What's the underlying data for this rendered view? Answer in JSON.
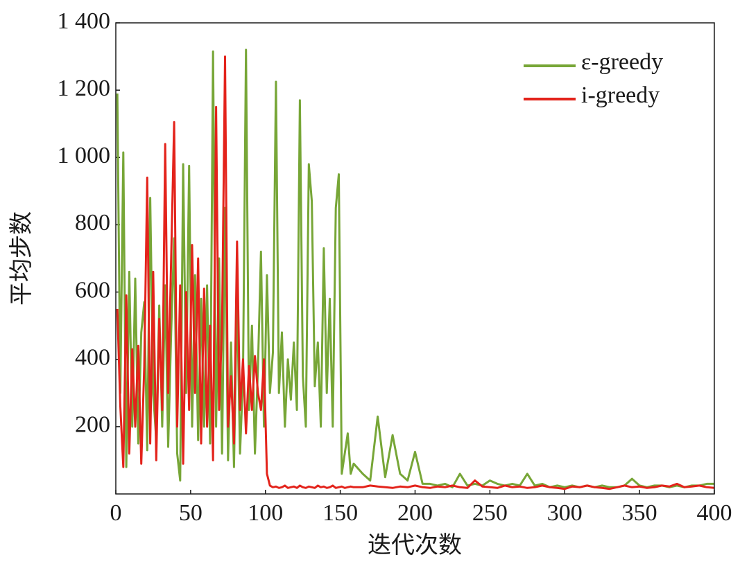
{
  "chart_data": {
    "type": "line",
    "x_label": "迭代次数",
    "y_label": "平均步数",
    "x": [
      1,
      3,
      5,
      7,
      9,
      11,
      13,
      15,
      17,
      19,
      21,
      23,
      25,
      27,
      29,
      31,
      33,
      35,
      37,
      39,
      41,
      43,
      45,
      47,
      49,
      51,
      53,
      55,
      57,
      59,
      61,
      63,
      65,
      67,
      69,
      71,
      73,
      75,
      77,
      79,
      81,
      83,
      85,
      87,
      89,
      91,
      93,
      95,
      97,
      99,
      101,
      103,
      105,
      107,
      109,
      111,
      113,
      115,
      117,
      119,
      121,
      123,
      125,
      127,
      129,
      131,
      133,
      135,
      137,
      139,
      141,
      143,
      145,
      147,
      149,
      151,
      153,
      155,
      157,
      159,
      165,
      170,
      175,
      180,
      185,
      190,
      195,
      200,
      205,
      210,
      215,
      220,
      225,
      230,
      235,
      240,
      245,
      250,
      255,
      260,
      265,
      270,
      275,
      280,
      285,
      290,
      295,
      300,
      305,
      310,
      315,
      320,
      325,
      330,
      335,
      340,
      345,
      350,
      355,
      360,
      365,
      370,
      375,
      380,
      385,
      390,
      395,
      400
    ],
    "series": [
      {
        "name": "ε-greedy",
        "color": "#77a637",
        "values": [
          1190,
          300,
          1015,
          80,
          660,
          200,
          640,
          150,
          480,
          570,
          130,
          880,
          300,
          160,
          560,
          200,
          620,
          140,
          480,
          760,
          120,
          40,
          980,
          300,
          975,
          200,
          650,
          160,
          580,
          200,
          620,
          150,
          1315,
          200,
          700,
          120,
          850,
          100,
          450,
          80,
          600,
          120,
          350,
          1320,
          250,
          500,
          120,
          380,
          720,
          200,
          650,
          300,
          420,
          1225,
          300,
          480,
          200,
          400,
          280,
          450,
          250,
          1170,
          350,
          200,
          980,
          870,
          320,
          450,
          200,
          730,
          300,
          580,
          200,
          850,
          950,
          60,
          120,
          180,
          60,
          90,
          60,
          40,
          230,
          50,
          175,
          60,
          40,
          125,
          30,
          30,
          25,
          30,
          20,
          60,
          25,
          30,
          25,
          40,
          30,
          25,
          30,
          25,
          60,
          25,
          30,
          20,
          25,
          20,
          25,
          20,
          25,
          20,
          25,
          20,
          20,
          25,
          45,
          25,
          20,
          25,
          25,
          20,
          25,
          20,
          25,
          25,
          30,
          30
        ]
      },
      {
        "name": "i-greedy",
        "color": "#e3231b",
        "values": [
          550,
          260,
          80,
          590,
          120,
          430,
          200,
          440,
          90,
          380,
          940,
          150,
          660,
          100,
          520,
          250,
          1040,
          300,
          700,
          1105,
          200,
          620,
          90,
          600,
          250,
          740,
          300,
          700,
          150,
          610,
          200,
          500,
          100,
          1150,
          250,
          500,
          1300,
          200,
          350,
          150,
          750,
          250,
          400,
          180,
          380,
          250,
          410,
          300,
          250,
          400,
          60,
          25,
          20,
          22,
          18,
          20,
          25,
          18,
          20,
          22,
          18,
          25,
          20,
          18,
          22,
          20,
          18,
          25,
          20,
          22,
          18,
          20,
          25,
          18,
          20,
          22,
          18,
          20,
          22,
          20,
          20,
          25,
          22,
          20,
          18,
          22,
          20,
          25,
          20,
          18,
          22,
          20,
          25,
          20,
          18,
          40,
          22,
          20,
          18,
          25,
          20,
          22,
          18,
          20,
          25,
          20,
          18,
          15,
          22,
          20,
          25,
          20,
          18,
          15,
          20,
          25,
          20,
          22,
          18,
          20,
          25,
          22,
          30,
          20,
          22,
          25,
          20,
          18
        ]
      }
    ],
    "xlim": [
      0,
      400
    ],
    "xticks": [
      0,
      50,
      100,
      150,
      200,
      250,
      300,
      350,
      400
    ],
    "ylim": [
      0,
      1400
    ],
    "yticks": [
      200,
      400,
      600,
      800,
      {
        "value": 1000,
        "label": "1 000"
      },
      {
        "value": 1200,
        "label": "1 200"
      },
      {
        "value": 1400,
        "label": "1 400"
      }
    ],
    "legend": "upper right"
  }
}
